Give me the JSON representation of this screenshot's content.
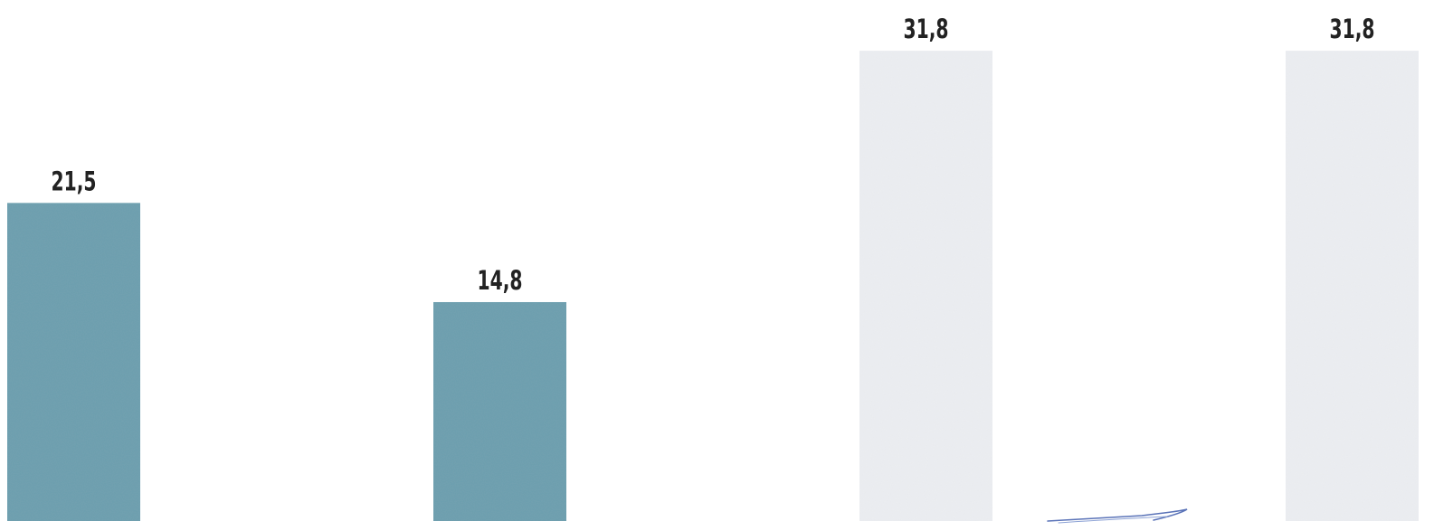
{
  "chart_data": {
    "type": "bar",
    "categories": [
      "",
      "",
      "",
      ""
    ],
    "values": [
      21.5,
      14.8,
      31.8,
      31.8
    ],
    "value_labels": [
      "21,5",
      "14,8",
      "31,8",
      "31,8"
    ],
    "bar_colors": [
      "#6a9fae",
      "#6a9fae",
      "#eceef2",
      "#eceef2"
    ],
    "ylim": [
      0,
      31.8
    ],
    "grid": false,
    "legend": "none",
    "title": "",
    "xlabel": "",
    "ylabel": ""
  },
  "colors": {
    "label_text": "#222222",
    "baseline": "#6a9fae",
    "scribble": "#5a73b8"
  }
}
